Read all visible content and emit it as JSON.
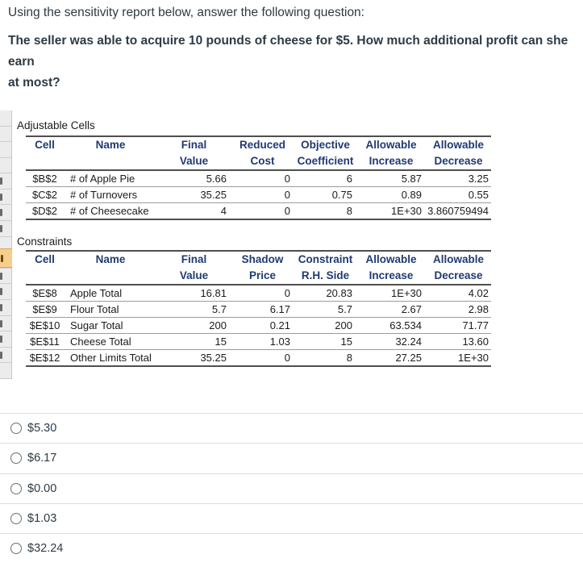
{
  "question": {
    "intro": "Using the sensitivity report below, answer the following question:",
    "body_lines": [
      "The seller was able to acquire 10 pounds of cheese for $5. How much additional profit can she earn",
      "at most?"
    ]
  },
  "report": {
    "adjustable_cells": {
      "title": "Adjustable Cells",
      "headers": [
        {
          "l1": "",
          "l2": "Cell"
        },
        {
          "l1": "",
          "l2": "Name"
        },
        {
          "l1": "Final",
          "l2": "Value"
        },
        {
          "l1": "Reduced",
          "l2": "Cost"
        },
        {
          "l1": "Objective",
          "l2": "Coefficient"
        },
        {
          "l1": "Allowable",
          "l2": "Increase"
        },
        {
          "l1": "Allowable",
          "l2": "Decrease"
        }
      ],
      "rows": [
        [
          "$B$2",
          "# of Apple Pie",
          "5.66",
          "0",
          "6",
          "5.87",
          "3.25"
        ],
        [
          "$C$2",
          "# of Turnovers",
          "35.25",
          "0",
          "0.75",
          "0.89",
          "0.55"
        ],
        [
          "$D$2",
          "# of Cheesecake",
          "4",
          "0",
          "8",
          "1E+30",
          "3.860759494"
        ]
      ]
    },
    "constraints": {
      "title": "Constraints",
      "headers": [
        {
          "l1": "",
          "l2": "Cell"
        },
        {
          "l1": "",
          "l2": "Name"
        },
        {
          "l1": "Final",
          "l2": "Value"
        },
        {
          "l1": "Shadow",
          "l2": "Price"
        },
        {
          "l1": "Constraint",
          "l2": "R.H. Side"
        },
        {
          "l1": "Allowable",
          "l2": "Increase"
        },
        {
          "l1": "Allowable",
          "l2": "Decrease"
        }
      ],
      "rows": [
        [
          "$E$8",
          "Apple Total",
          "16.81",
          "0",
          "20.83",
          "1E+30",
          "4.02"
        ],
        [
          "$E$9",
          "Flour Total",
          "5.7",
          "6.17",
          "5.7",
          "2.67",
          "2.98"
        ],
        [
          "$E$10",
          "Sugar Total",
          "200",
          "0.21",
          "200",
          "63.534",
          "71.77"
        ],
        [
          "$E$11",
          "Cheese Total",
          "15",
          "1.03",
          "15",
          "32.24",
          "13.60"
        ],
        [
          "$E$12",
          "Other Limits Total",
          "35.25",
          "0",
          "8",
          "27.25",
          "1E+30"
        ]
      ]
    }
  },
  "options": [
    {
      "label": "$5.30",
      "selected": false
    },
    {
      "label": "$6.17",
      "selected": false
    },
    {
      "label": "$0.00",
      "selected": false
    },
    {
      "label": "$1.03",
      "selected": false
    },
    {
      "label": "$32.24",
      "selected": false
    }
  ],
  "colors": {
    "question_text": "#2D3B45",
    "table_header_text": "#1F3A72",
    "table_rule_dark": "#4F4F4F",
    "table_rule_light": "#9C9C9C",
    "row_header_highlight": "#F8CE8D",
    "option_divider": "#DBDDE0"
  }
}
